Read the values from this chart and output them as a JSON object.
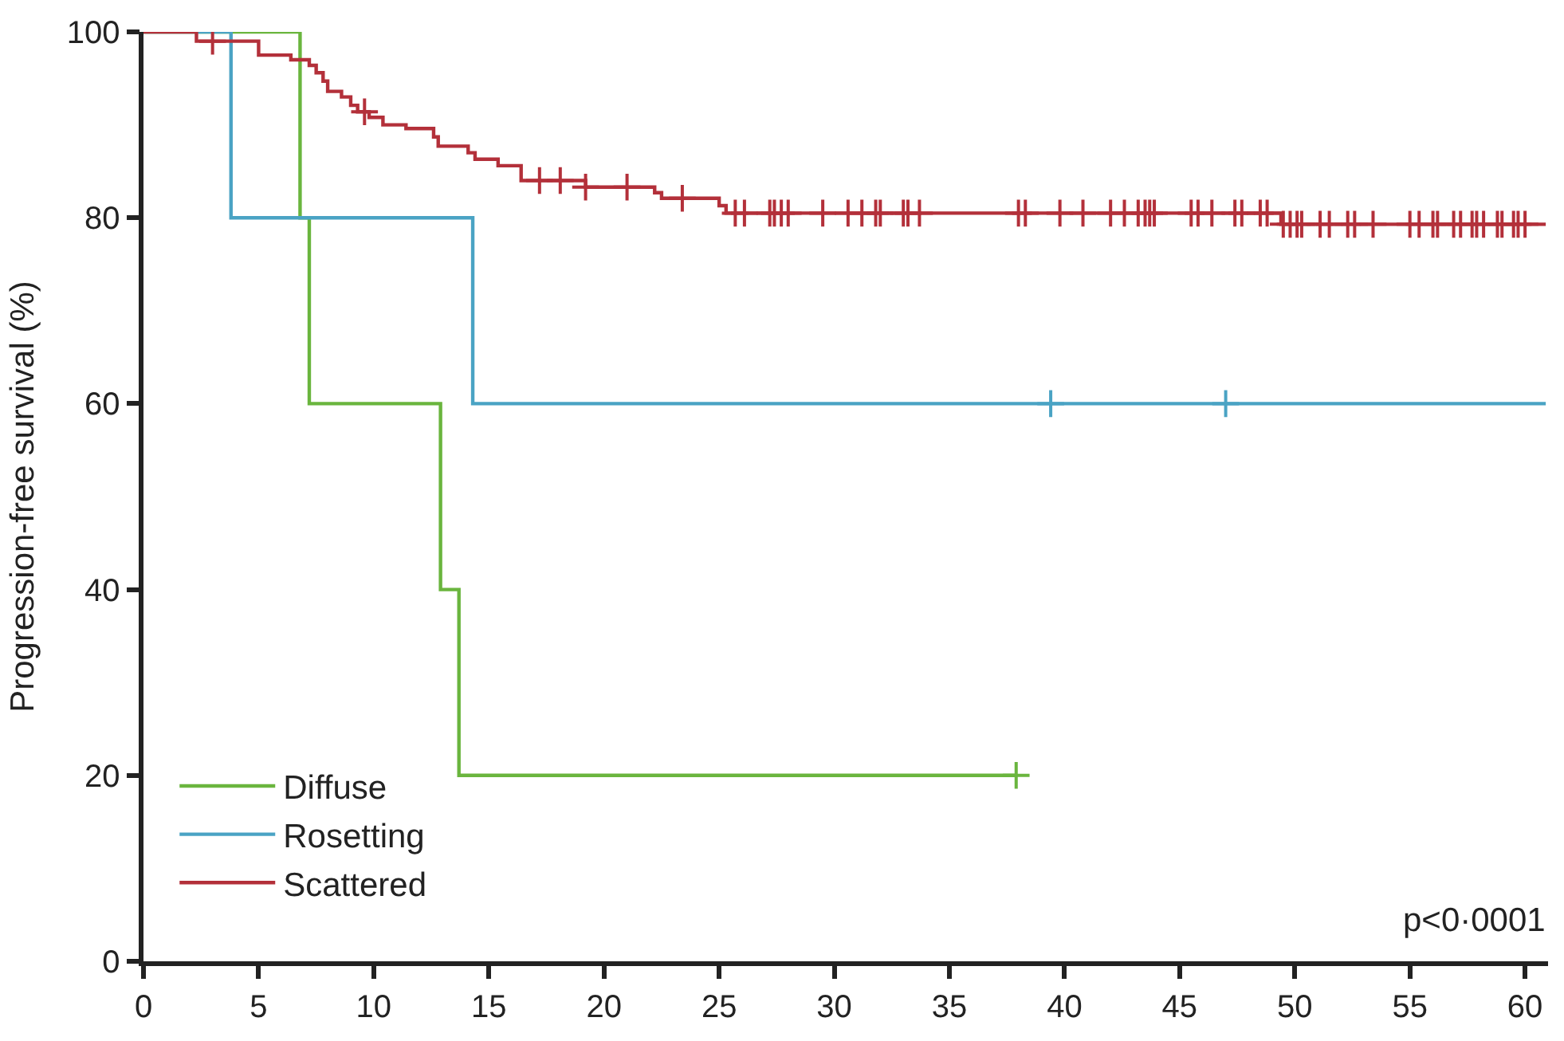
{
  "chart_data": {
    "type": "step",
    "ylabel": "Progression-free survival (%)",
    "xlim": [
      0,
      61
    ],
    "xticks": [
      0,
      5,
      10,
      15,
      20,
      25,
      30,
      35,
      40,
      45,
      50,
      55,
      60
    ],
    "ylim": [
      0,
      100
    ],
    "yticks": [
      0,
      20,
      40,
      60,
      80,
      100
    ],
    "legend": "bottom left",
    "marker": "none",
    "line_style": "solid",
    "annotations": [
      "p<0·0001"
    ],
    "series": [
      {
        "name": "Diffuse",
        "color": "#6ab53e",
        "x": [
          0,
          6.8,
          7.2,
          12.9,
          13.7,
          37.9
        ],
        "values": [
          100,
          80,
          60,
          40,
          20,
          20
        ]
      },
      {
        "name": "Rosetting",
        "color": "#4aa3c4",
        "x": [
          0,
          3.8,
          14.3,
          60.9
        ],
        "values": [
          100,
          80,
          60,
          60
        ]
      },
      {
        "name": "Scattered",
        "color": "#b3303a",
        "x": [
          0,
          2.3,
          5.0,
          6.4,
          7.2,
          7.5,
          7.8,
          8.0,
          8.6,
          9.0,
          9.3,
          9.8,
          10.4,
          11.4,
          12.6,
          12.8,
          14.1,
          14.4,
          15.4,
          16.4,
          19.2,
          22.2,
          22.5,
          25.0,
          25.3,
          49.4,
          60.9
        ],
        "values": [
          100,
          99,
          97.5,
          97,
          96.4,
          95.6,
          94.7,
          93.6,
          93,
          92.1,
          91.4,
          90.8,
          90,
          89.6,
          88.7,
          87.7,
          87,
          86.3,
          85.6,
          84,
          83.3,
          82.7,
          82.1,
          81.3,
          80.5,
          79.3,
          79.3
        ]
      },
      {
        "type": "scatter",
        "marker": "cross",
        "color": "#6ab53e",
        "x": [
          37.9
        ],
        "values": [
          20
        ]
      },
      {
        "type": "scatter",
        "marker": "cross",
        "color": "#4aa3c4",
        "x": [
          39.4,
          47.0
        ],
        "values": [
          60,
          60
        ]
      },
      {
        "type": "scatter",
        "marker": "cross",
        "color": "#b3303a",
        "x": [
          3.0,
          9.6,
          17.2,
          18.1,
          19.2,
          21.0,
          23.4,
          25.7,
          26.1,
          27.2,
          27.4,
          27.7,
          28.0,
          29.5,
          30.6,
          31.2,
          31.8,
          32.0,
          33.0,
          33.2,
          33.7,
          38.0,
          38.3,
          39.8,
          40.8,
          42.0,
          42.6,
          43.2,
          43.5,
          43.7,
          43.9,
          45.5,
          45.8,
          46.4,
          47.4,
          47.7,
          48.5,
          48.8,
          49.5,
          49.8,
          50.1,
          50.3,
          51.1,
          51.5,
          52.3,
          52.6,
          53.4,
          55.0,
          55.4,
          56.0,
          56.2,
          56.9,
          57.2,
          57.7,
          57.9,
          58.2,
          58.8,
          59.0,
          59.5,
          59.7,
          60.0
        ],
        "values": [
          99,
          91.4,
          84,
          84,
          83.3,
          83.3,
          82.1,
          80.5,
          80.5,
          80.5,
          80.5,
          80.5,
          80.5,
          80.5,
          80.5,
          80.5,
          80.5,
          80.5,
          80.5,
          80.5,
          80.5,
          80.5,
          80.5,
          80.5,
          80.5,
          80.5,
          80.5,
          80.5,
          80.5,
          80.5,
          80.5,
          80.5,
          80.5,
          80.5,
          80.5,
          80.5,
          80.5,
          80.5,
          79.3,
          79.3,
          79.3,
          79.3,
          79.3,
          79.3,
          79.3,
          79.3,
          79.3,
          79.3,
          79.3,
          79.3,
          79.3,
          79.3,
          79.3,
          79.3,
          79.3,
          79.3,
          79.3,
          79.3,
          79.3,
          79.3,
          79.3
        ]
      }
    ]
  }
}
